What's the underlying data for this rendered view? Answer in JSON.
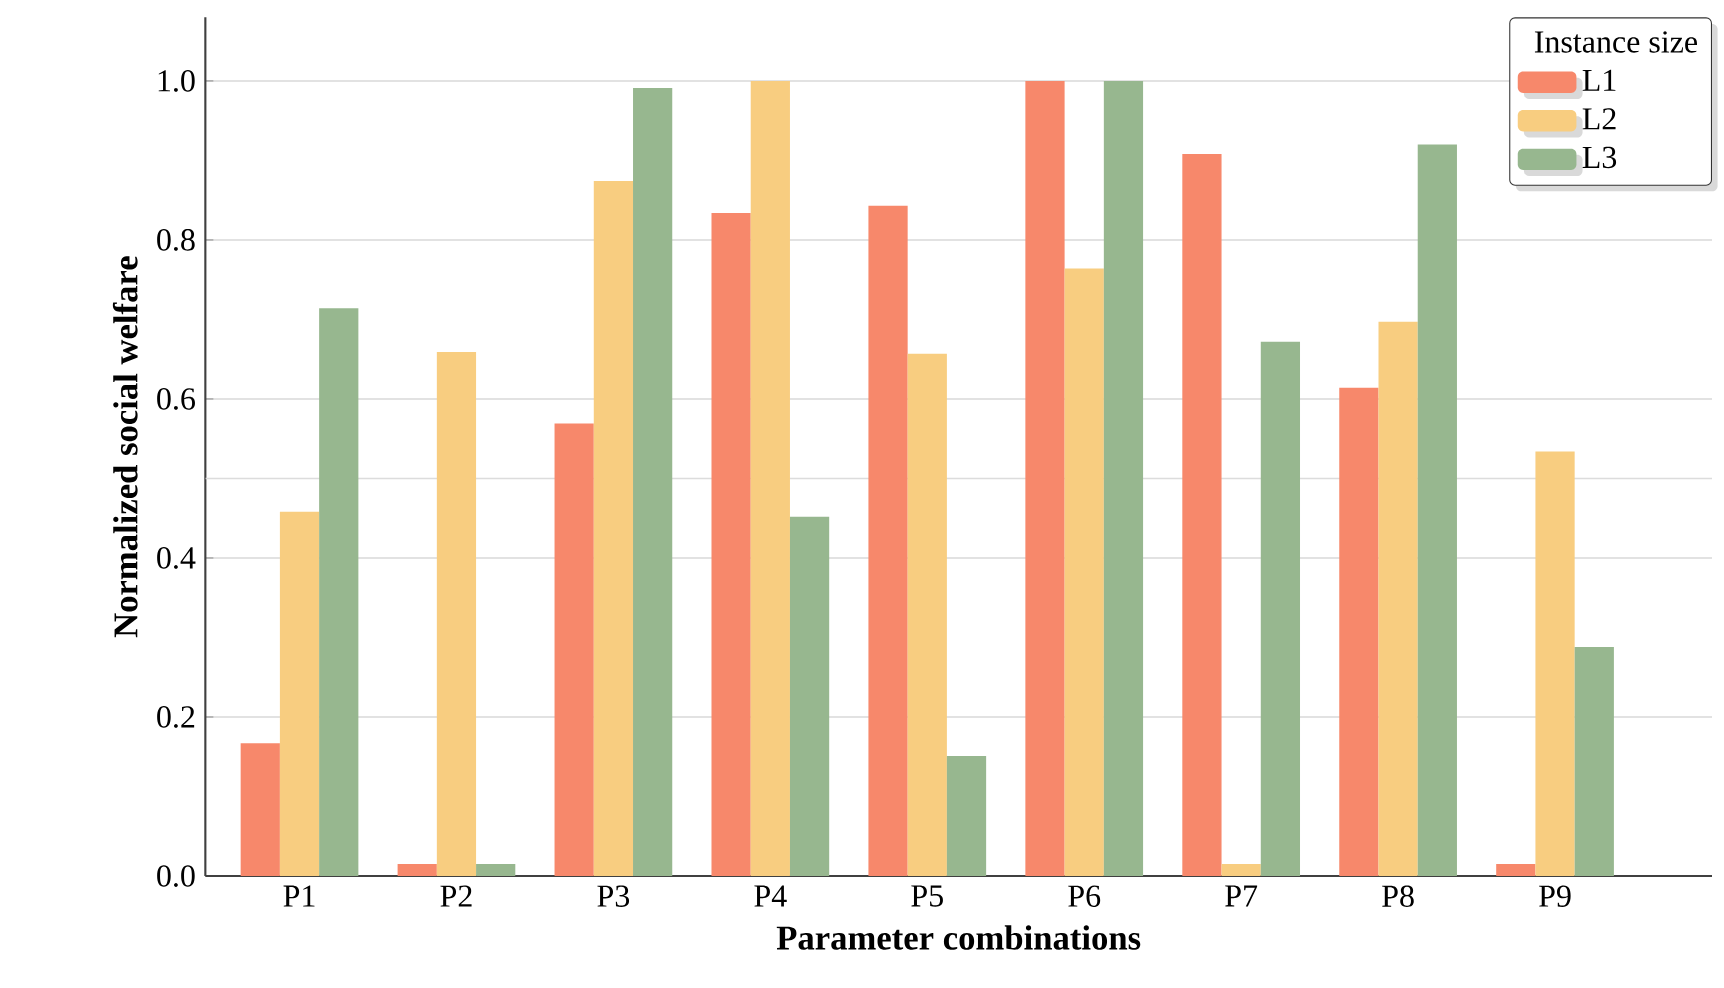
{
  "chart_data": {
    "type": "bar",
    "xlabel": "Parameter combinations",
    "ylabel": "Normalized social welfare",
    "legend_title": "Instance size",
    "categories": [
      "P1",
      "P2",
      "P3",
      "P4",
      "P5",
      "P6",
      "P7",
      "P8",
      "P9"
    ],
    "series": [
      {
        "name": "L1",
        "color": "#f7886b",
        "values": [
          0.167,
          0.015,
          0.569,
          0.834,
          0.843,
          1.0,
          0.908,
          0.614,
          0.015
        ]
      },
      {
        "name": "L2",
        "color": "#f8cd80",
        "values": [
          0.458,
          0.659,
          0.874,
          1.0,
          0.657,
          0.764,
          0.015,
          0.697,
          0.534
        ]
      },
      {
        "name": "L3",
        "color": "#97b78f",
        "values": [
          0.714,
          0.015,
          0.991,
          0.452,
          0.151,
          1.0,
          0.672,
          0.92,
          0.288
        ]
      }
    ],
    "ylim": [
      0,
      1.08
    ],
    "yticks": [
      {
        "value": 0,
        "label": "0.0"
      },
      {
        "value": 0.2,
        "label": "0.2"
      },
      {
        "value": 0.4,
        "label": "0.4"
      },
      {
        "value": 0.6,
        "label": "0.6"
      },
      {
        "value": 0.8,
        "label": "0.8"
      },
      {
        "value": 1.0,
        "label": "1.0"
      }
    ],
    "ref_lines": [
      {
        "axis": "y",
        "value": 0.5,
        "color": "#dcdcdc"
      }
    ],
    "grid": "y",
    "legend": "top right"
  }
}
